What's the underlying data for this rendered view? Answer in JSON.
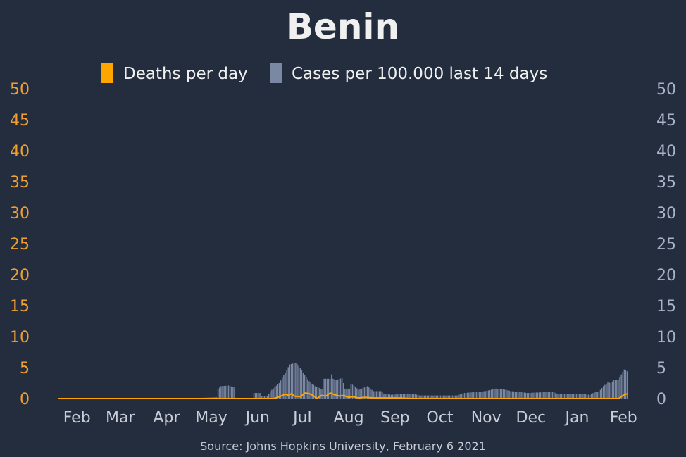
{
  "chart_data": {
    "type": "bar",
    "title": "Benin",
    "source": "Source: Johns Hopkins University, February 6 2021",
    "legend": {
      "placement": "top-center",
      "entries": [
        {
          "label": "Deaths per day",
          "color": "#ffa500"
        },
        {
          "label": "Cases per 100.000 last 14 days",
          "color": "#7a88a4"
        }
      ]
    },
    "colors": {
      "background": "#232d3e",
      "deaths": "#ffa500",
      "cases": "#7a88a4",
      "left_axis": "#f0a030",
      "right_axis": "#aab4c8"
    },
    "ylim_left": [
      0,
      50
    ],
    "ylim_right": [
      0,
      50
    ],
    "yticks_left": [
      "0",
      "5",
      "10",
      "15",
      "20",
      "25",
      "30",
      "35",
      "40",
      "45",
      "50"
    ],
    "yticks_right": [
      "0",
      "5",
      "10",
      "15",
      "20",
      "25",
      "30",
      "35",
      "40",
      "45",
      "50"
    ],
    "grid": false,
    "x_range": [
      "2020-01-22",
      "2021-02-06"
    ],
    "xticks": [
      {
        "date": "2020-02-01",
        "label": "Feb"
      },
      {
        "date": "2020-03-01",
        "label": "Mar"
      },
      {
        "date": "2020-04-01",
        "label": "Apr"
      },
      {
        "date": "2020-05-01",
        "label": "May"
      },
      {
        "date": "2020-06-01",
        "label": "Jun"
      },
      {
        "date": "2020-07-01",
        "label": "Jul"
      },
      {
        "date": "2020-08-01",
        "label": "Aug"
      },
      {
        "date": "2020-09-01",
        "label": "Sep"
      },
      {
        "date": "2020-10-01",
        "label": "Oct"
      },
      {
        "date": "2020-11-01",
        "label": "Nov"
      },
      {
        "date": "2020-12-01",
        "label": "Dec"
      },
      {
        "date": "2021-01-01",
        "label": "Jan"
      },
      {
        "date": "2021-02-01",
        "label": "Feb"
      }
    ],
    "series": [
      {
        "name": "Cases per 100.000 last 14 days",
        "axis": "right",
        "style": "bar",
        "points": [
          [
            "2020-01-22",
            0
          ],
          [
            "2020-04-15",
            0
          ],
          [
            "2020-04-25",
            0.1
          ],
          [
            "2020-05-07",
            0.2
          ],
          [
            "2020-05-08",
            1.5
          ],
          [
            "2020-05-10",
            2.0
          ],
          [
            "2020-05-15",
            2.1
          ],
          [
            "2020-05-19",
            1.8
          ],
          [
            "2020-05-20",
            0
          ],
          [
            "2020-05-31",
            0
          ],
          [
            "2020-06-01",
            0.9
          ],
          [
            "2020-06-05",
            0.9
          ],
          [
            "2020-06-06",
            0.4
          ],
          [
            "2020-06-10",
            0.4
          ],
          [
            "2020-06-12",
            1.2
          ],
          [
            "2020-06-18",
            2.5
          ],
          [
            "2020-06-22",
            4.2
          ],
          [
            "2020-06-25",
            5.5
          ],
          [
            "2020-06-29",
            5.8
          ],
          [
            "2020-07-02",
            5.0
          ],
          [
            "2020-07-05",
            3.8
          ],
          [
            "2020-07-08",
            2.8
          ],
          [
            "2020-07-12",
            2.0
          ],
          [
            "2020-07-17",
            1.5
          ],
          [
            "2020-07-18",
            3.2
          ],
          [
            "2020-07-22",
            3.2
          ],
          [
            "2020-07-23",
            3.9
          ],
          [
            "2020-07-24",
            3.2
          ],
          [
            "2020-07-26",
            3.0
          ],
          [
            "2020-07-30",
            3.3
          ],
          [
            "2020-07-31",
            2.5
          ],
          [
            "2020-08-01",
            1.6
          ],
          [
            "2020-08-04",
            1.6
          ],
          [
            "2020-08-05",
            2.4
          ],
          [
            "2020-08-08",
            1.9
          ],
          [
            "2020-08-10",
            1.4
          ],
          [
            "2020-08-14",
            1.8
          ],
          [
            "2020-08-16",
            2.0
          ],
          [
            "2020-08-20",
            1.2
          ],
          [
            "2020-08-25",
            1.2
          ],
          [
            "2020-08-27",
            0.8
          ],
          [
            "2020-09-01",
            0.6
          ],
          [
            "2020-09-10",
            0.8
          ],
          [
            "2020-09-15",
            0.8
          ],
          [
            "2020-09-20",
            0.5
          ],
          [
            "2020-10-01",
            0.5
          ],
          [
            "2020-10-10",
            0.5
          ],
          [
            "2020-10-15",
            0.5
          ],
          [
            "2020-10-20",
            0.9
          ],
          [
            "2020-10-25",
            1.0
          ],
          [
            "2020-10-31",
            1.1
          ],
          [
            "2020-11-05",
            1.3
          ],
          [
            "2020-11-10",
            1.6
          ],
          [
            "2020-11-15",
            1.5
          ],
          [
            "2020-11-20",
            1.2
          ],
          [
            "2020-11-25",
            1.1
          ],
          [
            "2020-12-01",
            0.9
          ],
          [
            "2020-12-10",
            1.0
          ],
          [
            "2020-12-18",
            1.1
          ],
          [
            "2020-12-22",
            0.7
          ],
          [
            "2020-12-28",
            0.7
          ],
          [
            "2021-01-05",
            0.8
          ],
          [
            "2021-01-12",
            0.6
          ],
          [
            "2021-01-15",
            1.0
          ],
          [
            "2021-01-18",
            1.1
          ],
          [
            "2021-01-21",
            2.0
          ],
          [
            "2021-01-24",
            2.6
          ],
          [
            "2021-01-26",
            2.5
          ],
          [
            "2021-01-28",
            3.0
          ],
          [
            "2021-01-31",
            3.1
          ],
          [
            "2021-02-02",
            3.9
          ],
          [
            "2021-02-04",
            4.7
          ],
          [
            "2021-02-06",
            4.4
          ]
        ]
      },
      {
        "name": "Deaths per day",
        "axis": "left",
        "style": "line",
        "points": [
          [
            "2020-01-22",
            0
          ],
          [
            "2020-06-14",
            0
          ],
          [
            "2020-06-18",
            0.3
          ],
          [
            "2020-06-22",
            0.7
          ],
          [
            "2020-06-24",
            0.5
          ],
          [
            "2020-06-26",
            0.8
          ],
          [
            "2020-06-28",
            0.4
          ],
          [
            "2020-07-02",
            0.3
          ],
          [
            "2020-07-05",
            0.9
          ],
          [
            "2020-07-08",
            0.8
          ],
          [
            "2020-07-11",
            0.4
          ],
          [
            "2020-07-13",
            0.0
          ],
          [
            "2020-07-16",
            0.5
          ],
          [
            "2020-07-19",
            0.4
          ],
          [
            "2020-07-22",
            0.9
          ],
          [
            "2020-07-25",
            0.6
          ],
          [
            "2020-07-28",
            0.4
          ],
          [
            "2020-07-31",
            0.5
          ],
          [
            "2020-08-03",
            0.2
          ],
          [
            "2020-08-06",
            0.3
          ],
          [
            "2020-08-10",
            0.1
          ],
          [
            "2020-08-14",
            0.2
          ],
          [
            "2020-08-20",
            0.1
          ],
          [
            "2020-09-05",
            0.1
          ],
          [
            "2020-09-15",
            0.0
          ],
          [
            "2021-01-31",
            0.0
          ],
          [
            "2021-02-03",
            0.5
          ],
          [
            "2021-02-05",
            0.7
          ],
          [
            "2021-02-06",
            0.8
          ]
        ]
      }
    ]
  }
}
